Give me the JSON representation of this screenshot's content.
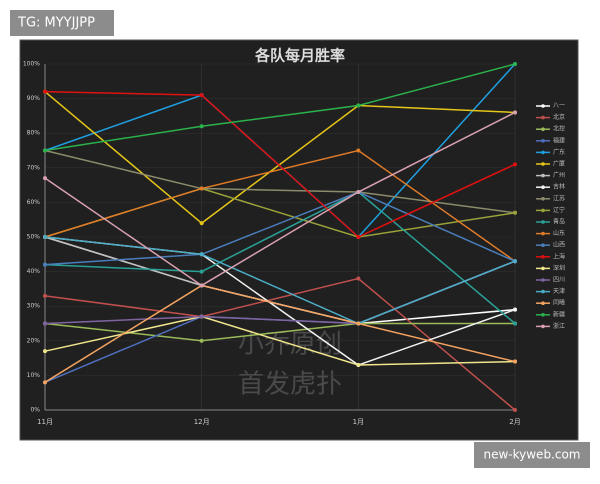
{
  "header": {
    "tag": "TG: MYYJJPP"
  },
  "footer": {
    "site": "new-kyweb.com"
  },
  "chart_data": {
    "type": "line",
    "title": "各队每月胜率",
    "categories": [
      "11月",
      "12月",
      "1月",
      "2月"
    ],
    "ylim": [
      0,
      100
    ],
    "yticks": [
      {
        "value": 0,
        "label": "0%"
      },
      {
        "value": 10,
        "label": "10%"
      },
      {
        "value": 20,
        "label": "20%"
      },
      {
        "value": 30,
        "label": "30%"
      },
      {
        "value": 40,
        "label": "40%"
      },
      {
        "value": 50,
        "label": "50%"
      },
      {
        "value": 60,
        "label": "60%"
      },
      {
        "value": 70,
        "label": "70%"
      },
      {
        "value": 80,
        "label": "80%"
      },
      {
        "value": 90,
        "label": "90%"
      },
      {
        "value": 100,
        "label": "100%"
      }
    ],
    "grid": true,
    "legend": "right",
    "annotations": [
      "小乔原创",
      "首发虎扑"
    ],
    "series": [
      {
        "name": "八一",
        "color": "#ffffff",
        "values": [
          50,
          36,
          25,
          29
        ]
      },
      {
        "name": "北京",
        "color": "#c0504d",
        "values": [
          33,
          27,
          38,
          0
        ]
      },
      {
        "name": "北控",
        "color": "#9bbb59",
        "values": [
          25,
          20,
          25,
          25
        ]
      },
      {
        "name": "福建",
        "color": "#4f6fbf",
        "values": [
          8,
          27,
          25,
          43
        ]
      },
      {
        "name": "广东",
        "color": "#1f9fe0",
        "values": [
          75,
          91,
          50,
          100
        ]
      },
      {
        "name": "广厦",
        "color": "#e6c619",
        "values": [
          92,
          54,
          88,
          86
        ]
      },
      {
        "name": "广州",
        "color": "#bfbfbf",
        "values": [
          50,
          36,
          25,
          43
        ]
      },
      {
        "name": "吉林",
        "color": "#f2f2f2",
        "values": [
          50,
          45,
          13,
          29
        ]
      },
      {
        "name": "江苏",
        "color": "#8c8c6c",
        "values": [
          75,
          64,
          63,
          57
        ]
      },
      {
        "name": "辽宁",
        "color": "#9aa33a",
        "values": [
          50,
          64,
          50,
          57
        ]
      },
      {
        "name": "青岛",
        "color": "#2aa198",
        "values": [
          42,
          40,
          63,
          25
        ]
      },
      {
        "name": "山东",
        "color": "#e07b28",
        "values": [
          50,
          64,
          75,
          43
        ]
      },
      {
        "name": "山西",
        "color": "#4a7ebb",
        "values": [
          42,
          45,
          63,
          43
        ]
      },
      {
        "name": "上海",
        "color": "#e01010",
        "values": [
          92,
          91,
          50,
          71
        ]
      },
      {
        "name": "深圳",
        "color": "#f0e68c",
        "values": [
          17,
          27,
          13,
          14
        ]
      },
      {
        "name": "四川",
        "color": "#8064a2",
        "values": [
          25,
          27,
          25,
          43
        ]
      },
      {
        "name": "天津",
        "color": "#4bacc6",
        "values": [
          50,
          45,
          25,
          43
        ]
      },
      {
        "name": "同曦",
        "color": "#f4a460",
        "values": [
          8,
          36,
          25,
          14
        ]
      },
      {
        "name": "新疆",
        "color": "#2bb24c",
        "values": [
          75,
          82,
          88,
          100
        ]
      },
      {
        "name": "浙江",
        "color": "#d8a0b0",
        "values": [
          67,
          36,
          63,
          86
        ]
      }
    ]
  }
}
